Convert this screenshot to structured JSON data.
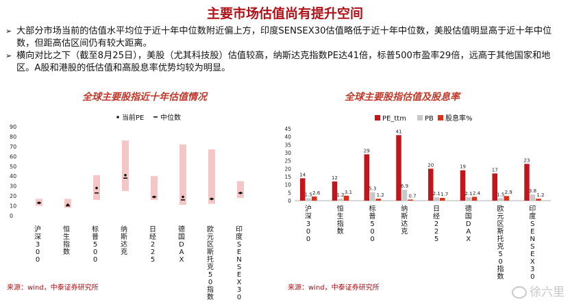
{
  "title": "主要市场估值尚有提升空间",
  "bullets": [
    "大部分市场当前的估值水平均位于近十年中位数附近偏上方，印度SENSEX30估值略低于近十年中位数，美股估值明显高于近十年中位数，但距高估区间仍有较大距离。",
    "横向对比之下（截至8月25日），美股（尤其科技股）估值较高，纳斯达克指数PE达41倍，标普500市盈率29倍，远高于其他国家和地区。A股和港股的低估值和高股息率优势均较为明显。"
  ],
  "bullet_mark": "➢",
  "source_left": "来源：wind，中泰证券研究所",
  "source_right": "来源：wind，中泰证券研究所",
  "watermark": "徐六里",
  "colors": {
    "title": "#b01218",
    "range": "#f5c6c6",
    "pe": "#c0161c",
    "pb": "#c8c8c8",
    "div": "#d9341a"
  },
  "chart_data": [
    {
      "type": "range",
      "title": "全球主要股指近十年估值情况",
      "legend": [
        "当前PE",
        "中位数"
      ],
      "yticks": [
        0,
        10,
        20,
        30,
        40,
        50,
        60,
        70,
        80,
        90
      ],
      "ylim": [
        0,
        90
      ],
      "categories": [
        "沪深300",
        "恒生指数",
        "标普500",
        "纳斯达克",
        "日经225",
        "德国DAX",
        "欧元区斯托克50指数",
        "印度SENSEX30"
      ],
      "low": [
        10,
        8,
        16,
        25,
        16,
        11,
        12,
        18
      ],
      "high": [
        17,
        17,
        41,
        76,
        40,
        72,
        67,
        35
      ],
      "current": [
        13,
        11,
        28,
        41,
        19,
        19,
        17,
        23
      ],
      "median": [
        13,
        10,
        23,
        38,
        19,
        16,
        17,
        23
      ]
    },
    {
      "type": "bar",
      "title": "全球主要股指估值及股息率",
      "yticks": [
        0,
        5,
        10,
        15,
        20,
        25,
        30,
        35,
        40,
        45
      ],
      "ylim": [
        0,
        45
      ],
      "categories": [
        "沪深300",
        "恒生指数",
        "标普500",
        "纳斯达克",
        "日经225",
        "德国DAX",
        "欧元区斯托克50指数",
        "印度SENSEX30"
      ],
      "series": [
        {
          "name": "PE_ttm",
          "values": [
            14,
            12,
            29,
            41,
            20,
            19,
            17,
            23
          ],
          "labels": [
            "14",
            "12",
            "29",
            "41",
            "20",
            "19",
            "17",
            "23"
          ]
        },
        {
          "name": "PB",
          "values": [
            1.5,
            1.2,
            5.3,
            6.9,
            2.1,
            2.1,
            1.5,
            3.8
          ],
          "labels": [
            "1.5",
            "1.2",
            "5.3",
            "6.9",
            "2.1",
            "2.1",
            "1.5",
            "3.8"
          ]
        },
        {
          "name": "股息率%",
          "values": [
            2.6,
            3.1,
            1.2,
            0.7,
            1.7,
            2.4,
            2.9,
            1.2
          ],
          "labels": [
            "2.6",
            "3.1",
            "1.2",
            "0.7",
            "1.7",
            "2.4",
            "2.9",
            "1.2"
          ]
        }
      ]
    }
  ]
}
